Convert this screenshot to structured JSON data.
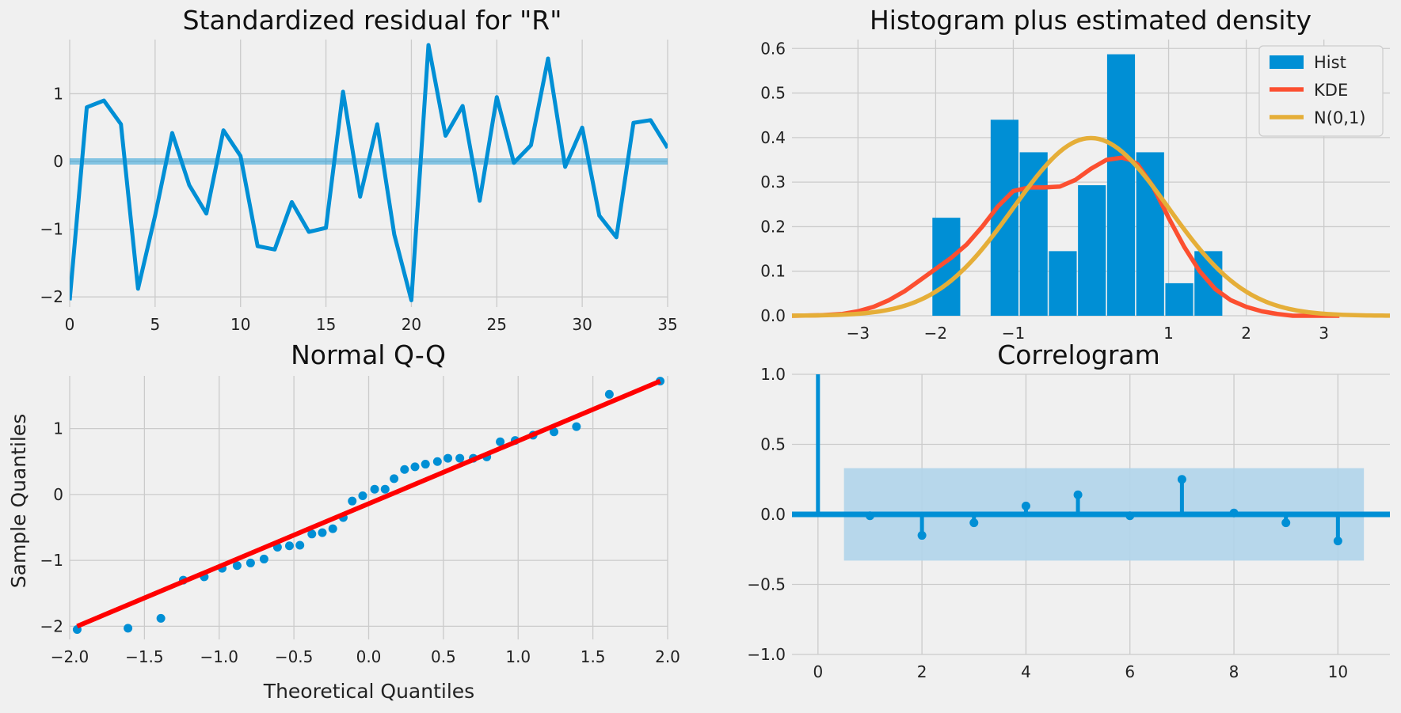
{
  "colors": {
    "background": "#f0f0f0",
    "grid": "#cbcbcb",
    "blue": "#008fd5",
    "red": "#fc4f30",
    "yellow": "#e5ae38",
    "qq_line": "#ff0000",
    "band": "#b0d4ea"
  },
  "chart_data": [
    {
      "id": "resid",
      "type": "line",
      "title": "Standardized residual for \"R\"",
      "xlabel": "",
      "ylabel": "",
      "xlim": [
        0,
        35
      ],
      "ylim": [
        -2.15,
        1.8
      ],
      "xticks": [
        0,
        5,
        10,
        15,
        20,
        25,
        30,
        35
      ],
      "yticks": [
        -2,
        -1,
        0,
        1
      ],
      "grid": true,
      "hline": 0,
      "x": [
        0,
        1,
        2,
        3,
        4,
        5,
        6,
        7,
        8,
        9,
        10,
        11,
        12,
        13,
        14,
        15,
        16,
        17,
        18,
        19,
        20,
        21,
        22,
        23,
        24,
        25,
        26,
        27,
        28,
        29,
        30,
        31,
        32,
        33,
        34,
        35
      ],
      "values": [
        -2.05,
        0.8,
        0.9,
        0.55,
        -1.88,
        -0.8,
        0.42,
        -0.35,
        -0.77,
        0.46,
        0.08,
        -1.25,
        -1.3,
        -0.6,
        -1.04,
        -0.98,
        1.03,
        -0.52,
        0.55,
        -1.08,
        -2.05,
        1.72,
        0.38,
        0.82,
        -0.58,
        0.95,
        -0.02,
        0.24,
        1.52,
        -0.08,
        0.5,
        -0.8,
        -1.12,
        0.57,
        0.61,
        0.2
      ]
    },
    {
      "id": "hist",
      "type": "bar",
      "title": "Histogram plus estimated density",
      "xlim": [
        -3.85,
        3.85
      ],
      "ylim": [
        0,
        0.62
      ],
      "xticks": [
        -3,
        -2,
        -1,
        1,
        2,
        3
      ],
      "yticks": [
        0.0,
        0.1,
        0.2,
        0.3,
        0.4,
        0.5,
        0.6
      ],
      "grid": true,
      "legend_position": "top-right",
      "bin_edges": [
        -2.05,
        -1.675,
        -1.3,
        -0.925,
        -0.55,
        -0.175,
        0.2,
        0.575,
        0.95,
        1.325,
        1.7
      ],
      "values": [
        0.22,
        0.0,
        0.44,
        0.367,
        0.145,
        0.293,
        0.587,
        0.367,
        0.073,
        0.145
      ],
      "series": [
        {
          "name": "Hist",
          "kind": "bar"
        },
        {
          "name": "KDE",
          "kind": "line",
          "x": [
            -3.85,
            -3.5,
            -3.2,
            -3.0,
            -2.8,
            -2.6,
            -2.4,
            -2.2,
            -2.0,
            -1.8,
            -1.6,
            -1.4,
            -1.2,
            -1.0,
            -0.8,
            -0.6,
            -0.4,
            -0.2,
            0.0,
            0.2,
            0.4,
            0.5,
            0.6,
            0.8,
            1.0,
            1.2,
            1.4,
            1.6,
            1.8,
            2.0,
            2.2,
            2.4,
            2.6,
            2.8,
            3.0,
            3.2
          ],
          "y": [
            0.0,
            0.001,
            0.004,
            0.01,
            0.02,
            0.035,
            0.055,
            0.08,
            0.105,
            0.13,
            0.16,
            0.2,
            0.245,
            0.28,
            0.288,
            0.288,
            0.29,
            0.305,
            0.33,
            0.35,
            0.355,
            0.35,
            0.34,
            0.29,
            0.22,
            0.155,
            0.1,
            0.06,
            0.035,
            0.02,
            0.01,
            0.004,
            0.0,
            0.0,
            0.0,
            0.0
          ]
        },
        {
          "name": "N(0,1)",
          "kind": "line",
          "mean": 0,
          "std": 1
        }
      ]
    },
    {
      "id": "qq",
      "type": "scatter",
      "title": "Normal Q-Q",
      "xlabel": "Theoretical Quantiles",
      "ylabel": "Sample Quantiles",
      "xlim": [
        -2.0,
        2.0
      ],
      "ylim": [
        -2.2,
        1.8
      ],
      "xticks": [
        -2.0,
        -1.5,
        -1.0,
        -0.5,
        0.0,
        0.5,
        1.0,
        1.5,
        2.0
      ],
      "yticks": [
        -2,
        -1,
        0,
        1
      ],
      "grid": true,
      "reference_line": {
        "x": [
          -1.95,
          1.95
        ],
        "y": [
          -2.0,
          1.72
        ]
      },
      "x": [
        -1.95,
        -1.61,
        -1.39,
        -1.24,
        -1.1,
        -0.98,
        -0.88,
        -0.79,
        -0.7,
        -0.61,
        -0.53,
        -0.46,
        -0.38,
        -0.31,
        -0.24,
        -0.17,
        -0.11,
        -0.04,
        0.04,
        0.11,
        0.17,
        0.24,
        0.31,
        0.38,
        0.46,
        0.53,
        0.61,
        0.7,
        0.79,
        0.88,
        0.98,
        1.1,
        1.24,
        1.39,
        1.61,
        1.95
      ],
      "values": [
        -2.05,
        -2.03,
        -1.88,
        -1.3,
        -1.25,
        -1.12,
        -1.08,
        -1.04,
        -0.98,
        -0.8,
        -0.78,
        -0.77,
        -0.6,
        -0.58,
        -0.52,
        -0.35,
        -0.1,
        -0.02,
        0.08,
        0.08,
        0.24,
        0.38,
        0.42,
        0.46,
        0.5,
        0.55,
        0.55,
        0.55,
        0.57,
        0.8,
        0.82,
        0.9,
        0.95,
        1.03,
        1.52,
        1.72
      ]
    },
    {
      "id": "acf",
      "type": "stem",
      "title": "Correlogram",
      "xlim": [
        -0.5,
        11.0
      ],
      "ylim": [
        -1.0,
        1.0
      ],
      "xticks": [
        0,
        2,
        4,
        6,
        8,
        10
      ],
      "yticks": [
        -1.0,
        -0.5,
        0.0,
        0.5,
        1.0
      ],
      "grid": true,
      "confidence_band": {
        "x": [
          0.5,
          10.5
        ],
        "lower": -0.33,
        "upper": 0.33
      },
      "lags": [
        0,
        1,
        2,
        3,
        4,
        5,
        6,
        7,
        8,
        9,
        10
      ],
      "values": [
        1.0,
        -0.01,
        -0.15,
        -0.06,
        0.06,
        0.14,
        -0.01,
        0.25,
        0.01,
        -0.06,
        -0.19
      ]
    }
  ]
}
